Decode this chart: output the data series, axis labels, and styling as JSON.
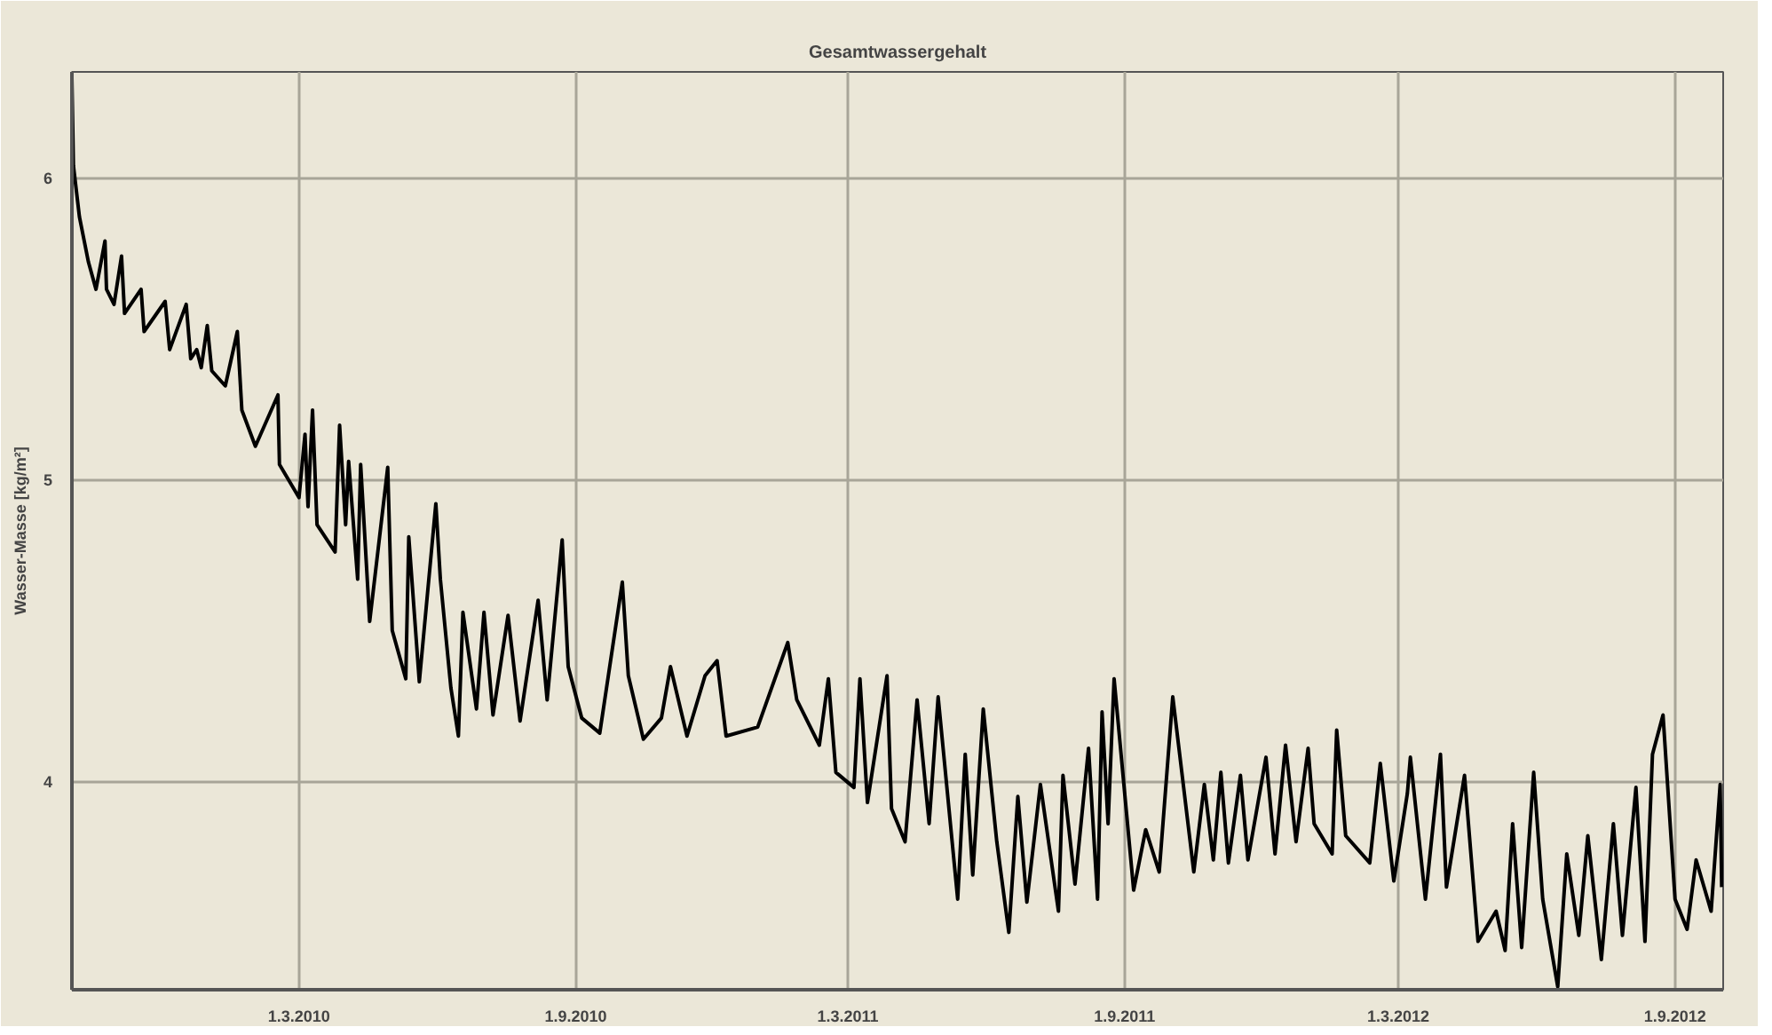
{
  "chart_data": {
    "type": "line",
    "title": "Gesamtwassergehalt",
    "ylabel": "Wasser-Masse [kg/m²]",
    "x": [
      "2009-10-01",
      "2009-10-02",
      "2009-10-06",
      "2009-10-12",
      "2009-10-17",
      "2009-10-23",
      "2009-10-24",
      "2009-10-29",
      "2009-11-03",
      "2009-11-05",
      "2009-11-16",
      "2009-11-18",
      "2009-12-02",
      "2009-12-05",
      "2009-12-16",
      "2009-12-19",
      "2009-12-23",
      "2009-12-26",
      "2009-12-30",
      "2010-01-02",
      "2010-01-11",
      "2010-01-19",
      "2010-01-22",
      "2010-01-31",
      "2010-02-15",
      "2010-02-16",
      "2010-03-01",
      "2010-03-05",
      "2010-03-07",
      "2010-03-10",
      "2010-03-13",
      "2010-03-25",
      "2010-03-28",
      "2010-04-01",
      "2010-04-03",
      "2010-04-09",
      "2010-04-11",
      "2010-04-17",
      "2010-04-29",
      "2010-05-02",
      "2010-05-11",
      "2010-05-13",
      "2010-05-20",
      "2010-05-31",
      "2010-06-03",
      "2010-06-10",
      "2010-06-15",
      "2010-06-18",
      "2010-06-27",
      "2010-07-02",
      "2010-07-08",
      "2010-07-18",
      "2010-07-26",
      "2010-08-07",
      "2010-08-13",
      "2010-08-23",
      "2010-08-27",
      "2010-09-05",
      "2010-09-17",
      "2010-10-02",
      "2010-10-06",
      "2010-10-16",
      "2010-10-28",
      "2010-11-03",
      "2010-11-14",
      "2010-11-26",
      "2010-12-04",
      "2010-12-10",
      "2010-12-31",
      "2011-01-20",
      "2011-01-26",
      "2011-02-10",
      "2011-02-16",
      "2011-02-21",
      "2011-03-05",
      "2011-03-09",
      "2011-03-14",
      "2011-03-27",
      "2011-03-30",
      "2011-04-08",
      "2011-04-16",
      "2011-04-24",
      "2011-04-30",
      "2011-05-13",
      "2011-05-18",
      "2011-05-23",
      "2011-05-30",
      "2011-06-08",
      "2011-06-16",
      "2011-06-22",
      "2011-06-28",
      "2011-07-07",
      "2011-07-19",
      "2011-07-22",
      "2011-07-30",
      "2011-08-08",
      "2011-08-14",
      "2011-08-17",
      "2011-08-21",
      "2011-08-25",
      "2011-09-07",
      "2011-09-15",
      "2011-09-24",
      "2011-10-03",
      "2011-10-17",
      "2011-10-24",
      "2011-10-30",
      "2011-11-04",
      "2011-11-09",
      "2011-11-17",
      "2011-11-22",
      "2011-12-04",
      "2011-12-10",
      "2011-12-17",
      "2011-12-24",
      "2012-01-01",
      "2012-01-05",
      "2012-01-17",
      "2012-01-20",
      "2012-01-26",
      "2012-02-11",
      "2012-02-18",
      "2012-02-27",
      "2012-03-07",
      "2012-03-09",
      "2012-03-19",
      "2012-03-29",
      "2012-04-02",
      "2012-04-14",
      "2012-04-23",
      "2012-05-05",
      "2012-05-11",
      "2012-05-16",
      "2012-05-22",
      "2012-05-30",
      "2012-06-05",
      "2012-06-15",
      "2012-06-21",
      "2012-06-29",
      "2012-07-05",
      "2012-07-14",
      "2012-07-22",
      "2012-07-28",
      "2012-08-06",
      "2012-08-12",
      "2012-08-17",
      "2012-08-24",
      "2012-09-01",
      "2012-09-09",
      "2012-09-15",
      "2012-09-25",
      "2012-10-01",
      "2012-10-02"
    ],
    "series": [
      {
        "color": "#000000",
        "values": [
          6.33,
          6.04,
          5.87,
          5.72,
          5.63,
          5.79,
          5.63,
          5.58,
          5.74,
          5.55,
          5.63,
          5.49,
          5.59,
          5.43,
          5.58,
          5.4,
          5.43,
          5.37,
          5.51,
          5.36,
          5.31,
          5.49,
          5.23,
          5.11,
          5.28,
          5.05,
          4.94,
          5.15,
          4.91,
          5.23,
          4.85,
          4.76,
          5.18,
          4.85,
          5.06,
          4.67,
          5.05,
          4.53,
          5.04,
          4.5,
          4.34,
          4.81,
          4.33,
          4.92,
          4.67,
          4.31,
          4.15,
          4.56,
          4.24,
          4.56,
          4.22,
          4.55,
          4.2,
          4.6,
          4.27,
          4.8,
          4.38,
          4.21,
          4.16,
          4.66,
          4.35,
          4.14,
          4.21,
          4.38,
          4.15,
          4.35,
          4.4,
          4.15,
          4.18,
          4.46,
          4.27,
          4.12,
          4.34,
          4.03,
          3.98,
          4.34,
          3.93,
          4.35,
          3.91,
          3.8,
          4.27,
          3.86,
          4.28,
          3.61,
          4.09,
          3.69,
          4.24,
          3.8,
          3.5,
          3.95,
          3.6,
          3.99,
          3.57,
          4.02,
          3.66,
          4.11,
          3.61,
          4.23,
          3.86,
          4.34,
          3.64,
          3.84,
          3.7,
          4.28,
          3.7,
          3.99,
          3.74,
          4.03,
          3.73,
          4.02,
          3.74,
          4.08,
          3.76,
          4.12,
          3.8,
          4.11,
          3.86,
          3.76,
          4.17,
          3.82,
          3.73,
          4.06,
          3.67,
          3.96,
          4.08,
          3.61,
          4.09,
          3.65,
          4.02,
          3.47,
          3.57,
          3.44,
          3.86,
          3.45,
          4.03,
          3.61,
          3.32,
          3.76,
          3.49,
          3.82,
          3.41,
          3.86,
          3.49,
          3.98,
          3.47,
          4.09,
          4.22,
          3.61,
          3.51,
          3.74,
          3.57,
          3.99,
          3.65
        ]
      }
    ],
    "xlim": [
      "2009-10-01",
      "2012-10-03"
    ],
    "xticks": [
      {
        "value": "2010-03-01",
        "label": "1.3.2010"
      },
      {
        "value": "2010-09-01",
        "label": "1.9.2010"
      },
      {
        "value": "2011-03-01",
        "label": "1.3.2011"
      },
      {
        "value": "2011-09-01",
        "label": "1.9.2011"
      },
      {
        "value": "2012-03-01",
        "label": "1.3.2012"
      },
      {
        "value": "2012-09-01",
        "label": "1.9.2012"
      }
    ],
    "ylim": [
      3.31,
      6.35
    ],
    "yticks": [
      4,
      5,
      6
    ],
    "grid": true
  }
}
